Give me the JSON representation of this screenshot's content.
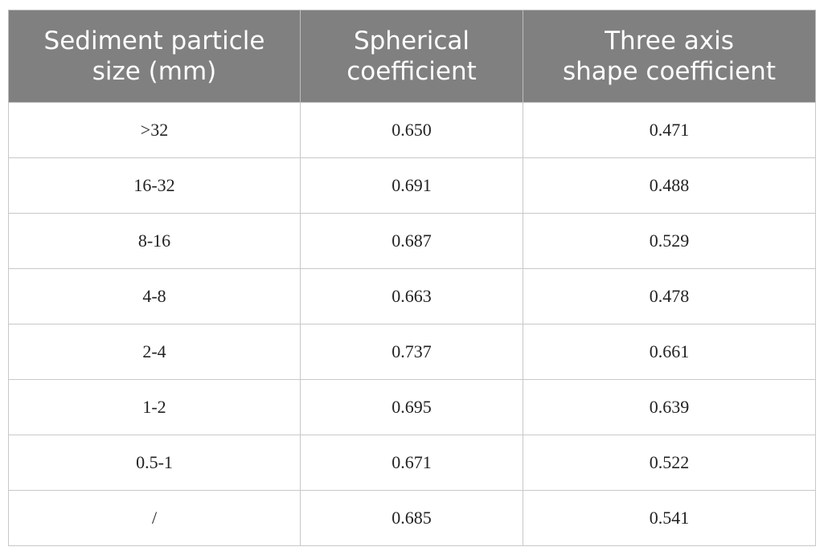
{
  "table": {
    "header": [
      [
        "Sediment particle",
        "size (mm)"
      ],
      [
        "Spherical",
        "coefficient"
      ],
      [
        "Three axis",
        "shape coefficient"
      ]
    ],
    "rows": [
      [
        ">32",
        "0.650",
        "0.471"
      ],
      [
        "16-32",
        "0.691",
        "0.488"
      ],
      [
        "8-16",
        "0.687",
        "0.529"
      ],
      [
        "4-8",
        "0.663",
        "0.478"
      ],
      [
        "2-4",
        "0.737",
        "0.661"
      ],
      [
        "1-2",
        "0.695",
        "0.639"
      ],
      [
        "0.5-1",
        "0.671",
        "0.522"
      ],
      [
        "/",
        "0.685",
        "0.541"
      ]
    ]
  }
}
